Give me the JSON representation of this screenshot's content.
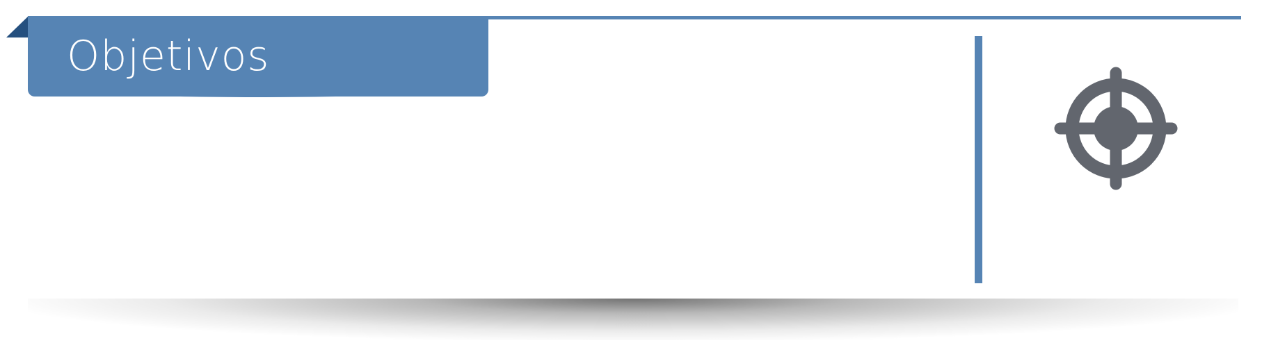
{
  "slide": {
    "title": "Objetivos",
    "icon": "target-crosshair-icon"
  },
  "colors": {
    "accent": "#5684b4",
    "fold": "#25507f",
    "icon": "#62666e",
    "title_text": "#ffffff"
  }
}
